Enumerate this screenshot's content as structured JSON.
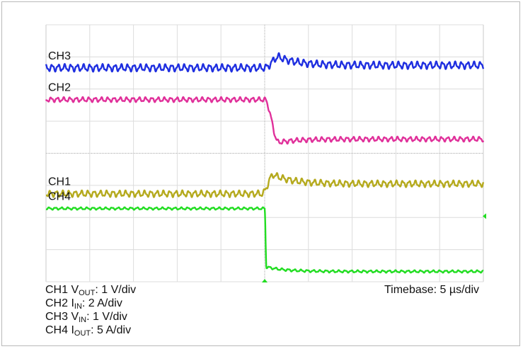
{
  "chart_data": {
    "type": "line",
    "grid": true,
    "divisions": {
      "x": 10,
      "y": 8
    },
    "time_unit": "µs",
    "x_range": [
      -25,
      25
    ],
    "trigger_time": 0,
    "series": [
      {
        "name": "CH3",
        "color": "#1f2fe0",
        "scale": "1 V/div",
        "before_div": 6.66,
        "after_div": 6.74,
        "overshoot_div": 7.0,
        "transition_start": 0,
        "transition_end": 1.6,
        "ripple_div": 0.09
      },
      {
        "name": "CH2",
        "color": "#e0309a",
        "scale": "2 A/div",
        "before_div": 5.67,
        "after_div": 4.44,
        "undershoot_div": 4.34,
        "transition_start": 0,
        "transition_end": 1.6,
        "ripple_div": 0.06
      },
      {
        "name": "CH1",
        "color": "#b5aa1e",
        "scale": "1 V/div",
        "before_div": 2.74,
        "after_div": 3.05,
        "overshoot_div": 3.33,
        "transition_start": -0.3,
        "transition_end": 1.0,
        "ripple_div": 0.08
      },
      {
        "name": "CH4",
        "color": "#22dd22",
        "scale": "5 A/div",
        "before_div": 2.28,
        "after_div": 0.32,
        "overshoot_div": 0.46,
        "transition_start": 0,
        "transition_end": 0.2,
        "ripple_div": 0.03
      }
    ]
  },
  "legend": {
    "ch1_prefix": "CH1 V",
    "ch1_sub": "OUT",
    "ch1_suffix": ": 1 V/div",
    "ch2_prefix": "CH2 I",
    "ch2_sub": "IN",
    "ch2_suffix": ": 2 A/div",
    "ch3_prefix": "CH3 V",
    "ch3_sub": "IN",
    "ch3_suffix": ": 1 V/div",
    "ch4_prefix": "CH4 I",
    "ch4_sub": "OUT",
    "ch4_suffix": ": 5 A/div"
  },
  "timebase_label": "Timebase: 5 µs/div"
}
